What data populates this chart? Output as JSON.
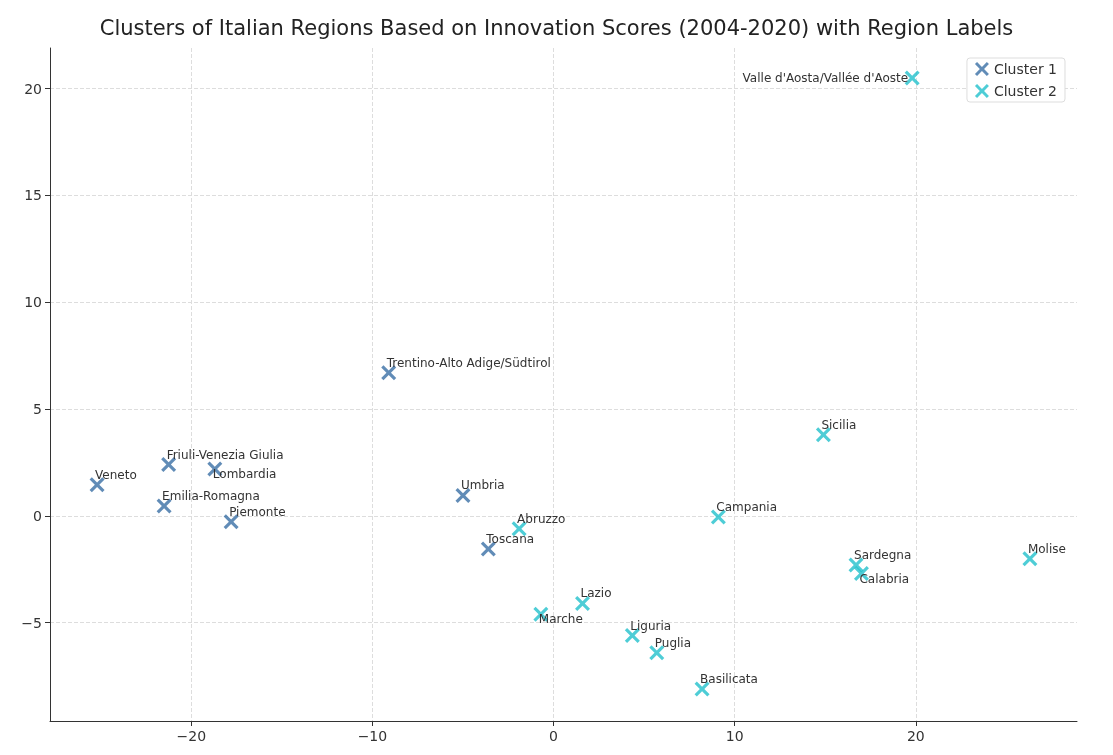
{
  "chart_data": {
    "type": "scatter",
    "title": "Clusters of Italian Regions Based on Innovation Scores (2004-2020) with Region Labels",
    "series": [
      {
        "name": "Cluster 1",
        "color": "#3a6fa5",
        "x": [
          -25.2,
          -21.25,
          -18.7,
          -21.5,
          -17.8,
          -9.1,
          -5.0,
          -3.6
        ],
        "values": [
          1.46,
          2.4,
          2.2,
          0.46,
          -0.27,
          6.7,
          0.96,
          -1.55
        ]
      },
      {
        "name": "Cluster 2",
        "color": "#22c0cc",
        "x": [
          19.8,
          14.9,
          9.1,
          -1.9,
          1.6,
          -0.7,
          4.35,
          5.7,
          8.2,
          16.7,
          17.0,
          26.3
        ],
        "values": [
          20.5,
          3.8,
          -0.05,
          -0.6,
          -4.1,
          -4.6,
          -5.6,
          -6.4,
          -8.1,
          -2.3,
          -2.7,
          -2.0
        ]
      }
    ],
    "annotations": [
      {
        "text": "Veneto",
        "x": -25.2,
        "y": 1.46
      },
      {
        "text": "Friuli-Venezia Giulia",
        "x": -21.25,
        "y": 2.4
      },
      {
        "text": "Lombardia",
        "x": -18.7,
        "y": 2.2
      },
      {
        "text": "Emilia-Romagna",
        "x": -21.5,
        "y": 0.46
      },
      {
        "text": "Piemonte",
        "x": -17.8,
        "y": -0.27
      },
      {
        "text": "Trentino-Alto Adige/Südtirol",
        "x": -9.1,
        "y": 6.7
      },
      {
        "text": "Umbria",
        "x": -5.0,
        "y": 0.96
      },
      {
        "text": "Toscana",
        "x": -3.6,
        "y": -1.55
      },
      {
        "text": "Valle d'Aosta/Vallée d'Aoste",
        "x": 19.8,
        "y": 20.5
      },
      {
        "text": "Sicilia",
        "x": 14.9,
        "y": 3.8
      },
      {
        "text": "Campania",
        "x": 9.1,
        "y": -0.05
      },
      {
        "text": "Abruzzo",
        "x": -1.9,
        "y": -0.6
      },
      {
        "text": "Lazio",
        "x": 1.6,
        "y": -4.1
      },
      {
        "text": "Marche",
        "x": -0.7,
        "y": -4.6
      },
      {
        "text": "Liguria",
        "x": 4.35,
        "y": -5.6
      },
      {
        "text": "Puglia",
        "x": 5.7,
        "y": -6.4
      },
      {
        "text": "Basilicata",
        "x": 8.2,
        "y": -8.1
      },
      {
        "text": "Sardegna",
        "x": 16.7,
        "y": -2.3
      },
      {
        "text": "Calabria",
        "x": 17.0,
        "y": -2.7
      },
      {
        "text": "Molise",
        "x": 26.3,
        "y": -2.0
      }
    ],
    "xlim": [
      -27.8,
      28.9
    ],
    "ylim": [
      -9.6,
      21.9
    ],
    "xticks": [
      -20,
      -10,
      0,
      10,
      20
    ],
    "yticks": [
      -5,
      0,
      5,
      10,
      15,
      20
    ],
    "grid": true,
    "legend": "top right",
    "marker": "cross"
  }
}
